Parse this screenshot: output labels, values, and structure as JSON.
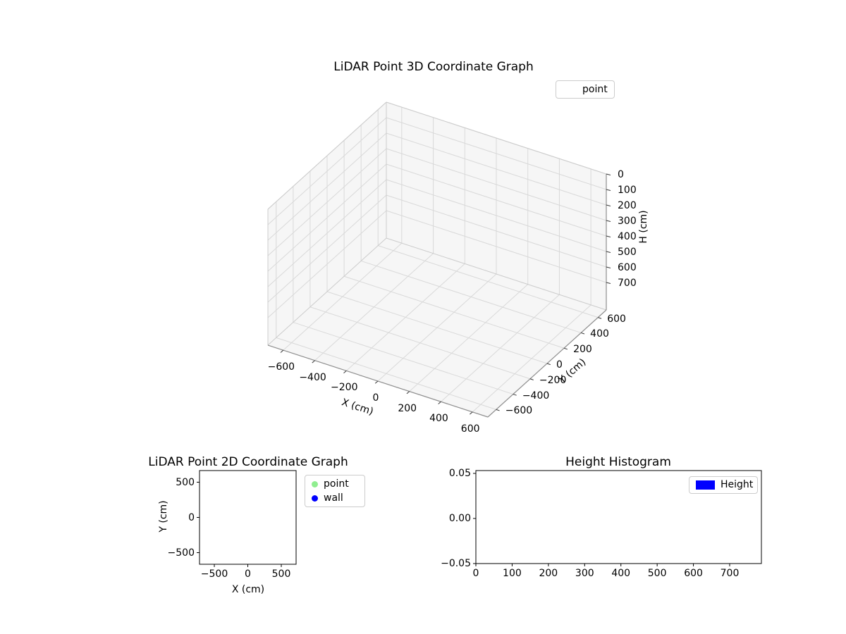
{
  "figure": {
    "background": "#ffffff"
  },
  "chart_data": [
    {
      "type": "scatter",
      "projection": "3d",
      "title": "LiDAR Point 3D Coordinate Graph",
      "xlabel": "X (cm)",
      "ylabel": "Y (cm)",
      "zlabel": "H (cm)",
      "x_ticks": [
        "−600",
        "−400",
        "−200",
        "0",
        "200",
        "400",
        "600"
      ],
      "y_ticks_top_to_bottom": [
        "600",
        "400",
        "200",
        "0",
        "−200",
        "−400",
        "−600"
      ],
      "z_ticks_top_to_bottom": [
        "0",
        "100",
        "200",
        "300",
        "400",
        "500",
        "600",
        "700"
      ],
      "z_axis_inverted": true,
      "grid": true,
      "legend": {
        "position": "upper-right-outside",
        "entries": [
          {
            "label": "point",
            "marker_visible": false
          }
        ]
      },
      "series": [
        {
          "name": "point",
          "points": []
        }
      ]
    },
    {
      "type": "scatter",
      "title": "LiDAR Point 2D Coordinate Graph",
      "xlabel": "X (cm)",
      "ylabel": "Y (cm)",
      "x_ticks": [
        "−500",
        "0",
        "500"
      ],
      "y_ticks_top_to_bottom": [
        "500",
        "0",
        "−500"
      ],
      "xlim": [
        -720,
        720
      ],
      "ylim": [
        -660,
        660
      ],
      "grid": false,
      "legend": {
        "position": "outside-right",
        "entries": [
          {
            "label": "point",
            "color": "#90ee90"
          },
          {
            "label": "wall",
            "color": "#0000ff"
          }
        ]
      },
      "series": [
        {
          "name": "point",
          "color": "#90ee90",
          "points": []
        },
        {
          "name": "wall",
          "color": "#0000ff",
          "points": []
        }
      ]
    },
    {
      "type": "bar",
      "title": "Height Histogram",
      "xlabel": "",
      "ylabel": "",
      "x_ticks": [
        "0",
        "100",
        "200",
        "300",
        "400",
        "500",
        "600",
        "700"
      ],
      "y_ticks_top_to_bottom": [
        "0.05",
        "0.00",
        "−0.05"
      ],
      "xlim": [
        0,
        790
      ],
      "ylim": [
        -0.053,
        0.053
      ],
      "grid": false,
      "legend": {
        "position": "upper-right-inside",
        "entries": [
          {
            "label": "Height",
            "color": "#0000ff"
          }
        ]
      },
      "values": []
    }
  ]
}
